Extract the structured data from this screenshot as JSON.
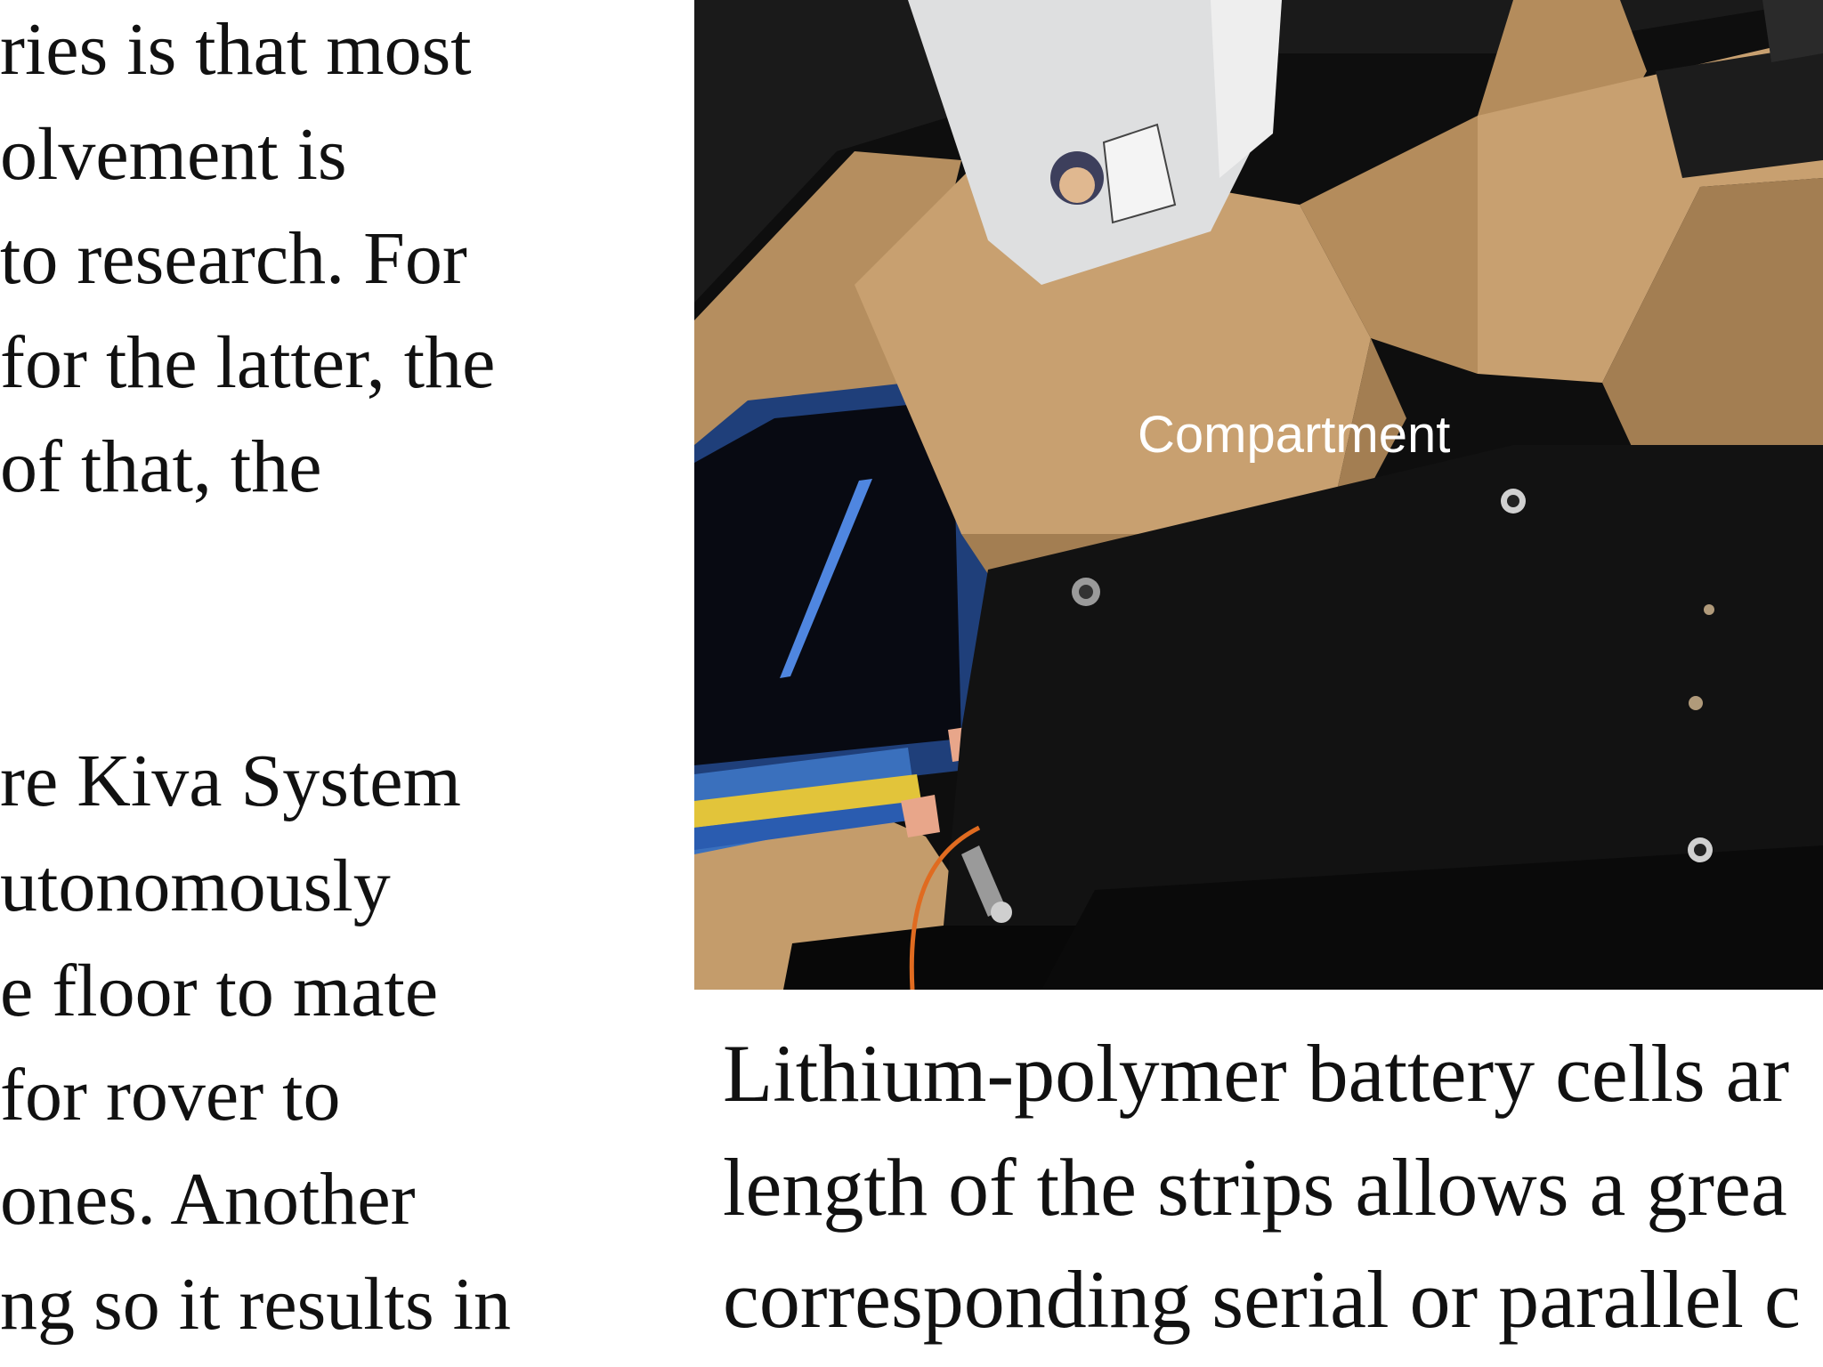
{
  "left_column": {
    "lines": [
      "ries is that most",
      "olvement is",
      "to research. For",
      "for the latter, the",
      " of that, the",
      "re Kiva System",
      "utonomously",
      "e floor to mate",
      " for rover to",
      "ones. Another",
      "ng so it results in"
    ]
  },
  "figure": {
    "label": "Compartment",
    "colors": {
      "cardboard": "#c8a070",
      "cardboard_dark": "#a37e52",
      "plate": "#121212",
      "background": "#1a1a1a",
      "card": "#dedfe0",
      "screen_blue": "#3b6fc8"
    }
  },
  "right_column": {
    "lines": [
      "Lithium-polymer battery cells ar",
      "length of the strips allows a grea",
      "corresponding serial or parallel c"
    ]
  }
}
